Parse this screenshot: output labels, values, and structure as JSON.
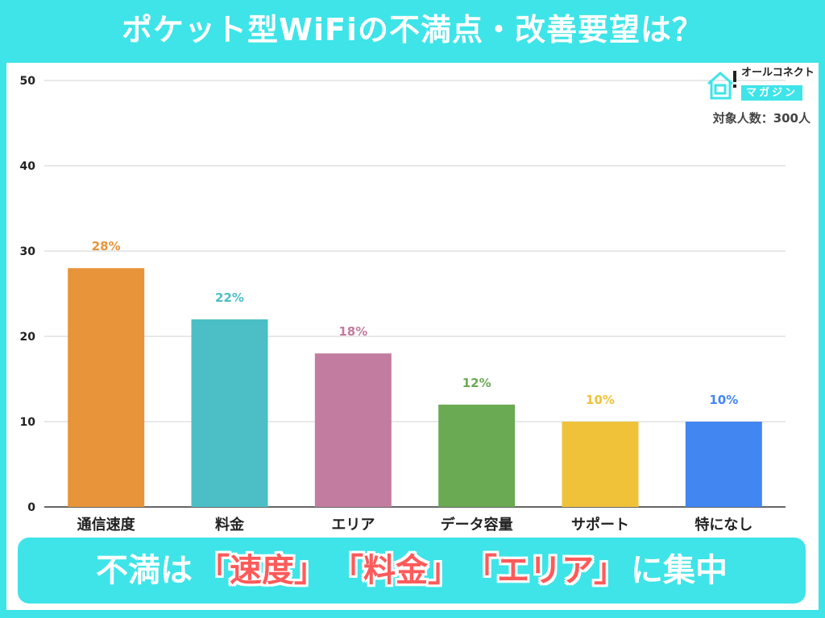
{
  "title": "ポケット型WiFiの不満点・改善要望は？",
  "logo": {
    "line1": "オールコネクト",
    "line2": "マガジン"
  },
  "sample_size": "対象人数：300人",
  "banner": {
    "prefix": "不満は",
    "h1": "「速度」",
    "h2": "「料金」",
    "h3": "「エリア」",
    "suffix": "に集中"
  },
  "chart_data": {
    "type": "bar",
    "categories": [
      "通信速度",
      "料金",
      "エリア",
      "データ容量",
      "サポート",
      "特になし"
    ],
    "values": [
      28,
      22,
      18,
      12,
      10,
      10
    ],
    "data_labels": [
      "28%",
      "22%",
      "18%",
      "12%",
      "10%",
      "10%"
    ],
    "colors": [
      "#e8943a",
      "#4bbec6",
      "#c27ca0",
      "#6aaa52",
      "#f0c23a",
      "#4286f2"
    ],
    "ylim": [
      0,
      50
    ],
    "yticks": [
      0,
      10,
      20,
      30,
      40,
      50
    ],
    "grid": true,
    "xlabel": "",
    "ylabel": ""
  }
}
